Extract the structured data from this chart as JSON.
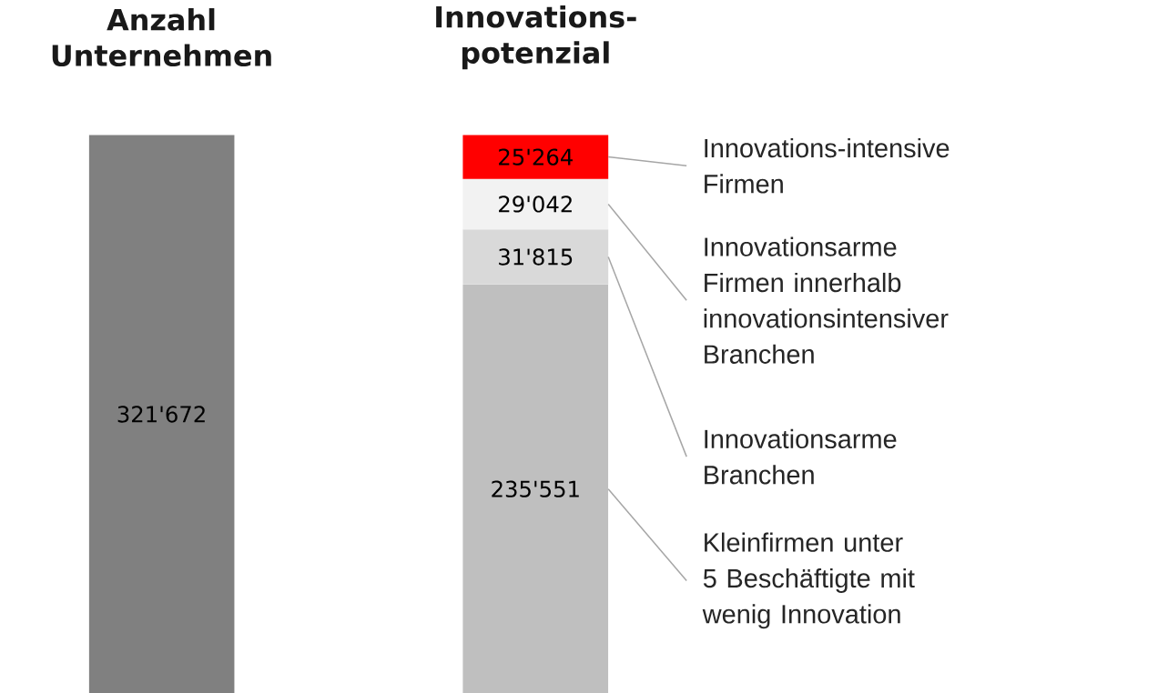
{
  "chart_data": {
    "type": "bar",
    "stacked": true,
    "legend": false,
    "categories": [
      "Anzahl Unternehmen",
      "Innovations-potenzial"
    ],
    "series": [
      {
        "color": "#808080",
        "values": [
          321672,
          null
        ],
        "value_labels": [
          "321'672",
          null
        ]
      },
      {
        "name": "Kleinfirmen unter 5 Beschäftigte mit wenig Innovation",
        "color": "#bfbfbf",
        "values": [
          null,
          235551
        ],
        "value_labels": [
          null,
          "235'551"
        ]
      },
      {
        "name": "Innovationsarme Branchen",
        "color": "#d9d9d9",
        "values": [
          null,
          31815
        ],
        "value_labels": [
          null,
          "31'815"
        ]
      },
      {
        "name": "Innovationsarme Firmen innerhalb innovationsintensiver Branchen",
        "color": "#f2f2f2",
        "values": [
          null,
          29042
        ],
        "value_labels": [
          null,
          "29'042"
        ]
      },
      {
        "name": "Innovations-intensive Firmen",
        "color": "#ff0000",
        "values": [
          null,
          25264
        ],
        "value_labels": [
          null,
          "25'264"
        ]
      }
    ]
  }
}
